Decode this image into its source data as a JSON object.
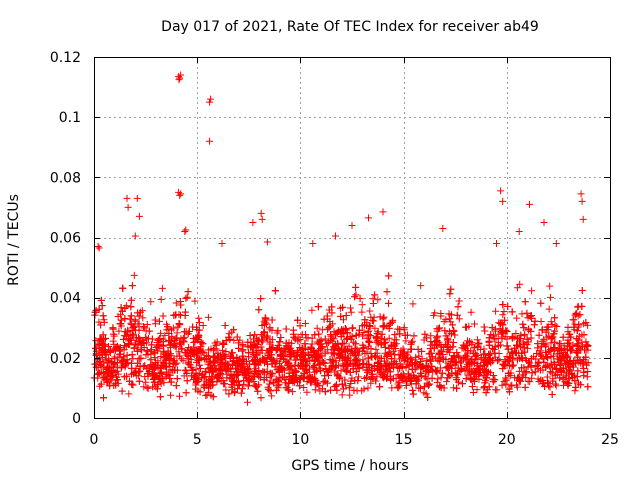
{
  "chart_data": {
    "type": "scatter",
    "title": "Day 017 of 2021, Rate Of TEC Index for receiver ab49",
    "xlabel": "GPS time / hours",
    "ylabel": "ROTI / TECUs",
    "xlim": [
      0,
      25
    ],
    "ylim": [
      0,
      0.12
    ],
    "xticks": [
      0,
      5,
      10,
      15,
      20,
      25
    ],
    "yticks": [
      0,
      0.02,
      0.04,
      0.06,
      0.08,
      0.1,
      0.12
    ],
    "xtick_labels": [
      "0",
      "5",
      "10",
      "15",
      "20",
      "25"
    ],
    "ytick_labels": [
      "0",
      "0.02",
      "0.04",
      "0.06",
      "0.08",
      "0.1",
      "0.12"
    ],
    "grid": true,
    "marker": "+",
    "color": "#ff0000",
    "outliers": [
      {
        "x": 4.1,
        "y": 0.1135
      },
      {
        "x": 4.15,
        "y": 0.113
      },
      {
        "x": 4.2,
        "y": 0.114
      },
      {
        "x": 4.12,
        "y": 0.1125
      },
      {
        "x": 5.6,
        "y": 0.105
      },
      {
        "x": 5.65,
        "y": 0.106
      },
      {
        "x": 5.6,
        "y": 0.092
      },
      {
        "x": 4.1,
        "y": 0.075
      },
      {
        "x": 4.2,
        "y": 0.0745
      },
      {
        "x": 4.15,
        "y": 0.074
      },
      {
        "x": 1.6,
        "y": 0.073
      },
      {
        "x": 2.1,
        "y": 0.073
      },
      {
        "x": 1.65,
        "y": 0.07
      },
      {
        "x": 19.7,
        "y": 0.0755
      },
      {
        "x": 19.8,
        "y": 0.072
      },
      {
        "x": 21.1,
        "y": 0.071
      },
      {
        "x": 23.6,
        "y": 0.0745
      },
      {
        "x": 23.65,
        "y": 0.072
      },
      {
        "x": 23.7,
        "y": 0.066
      },
      {
        "x": 8.1,
        "y": 0.068
      },
      {
        "x": 8.15,
        "y": 0.066
      },
      {
        "x": 7.7,
        "y": 0.065
      },
      {
        "x": 14.0,
        "y": 0.0685
      },
      {
        "x": 13.3,
        "y": 0.0665
      },
      {
        "x": 12.5,
        "y": 0.064
      },
      {
        "x": 2.2,
        "y": 0.067
      },
      {
        "x": 4.4,
        "y": 0.062
      },
      {
        "x": 4.45,
        "y": 0.0625
      },
      {
        "x": 16.9,
        "y": 0.063
      },
      {
        "x": 21.8,
        "y": 0.065
      },
      {
        "x": 20.6,
        "y": 0.062
      },
      {
        "x": 0.2,
        "y": 0.057
      },
      {
        "x": 0.25,
        "y": 0.0565
      },
      {
        "x": 2.0,
        "y": 0.0605
      },
      {
        "x": 11.7,
        "y": 0.0605
      },
      {
        "x": 10.6,
        "y": 0.058
      },
      {
        "x": 8.4,
        "y": 0.0585
      },
      {
        "x": 6.2,
        "y": 0.058
      },
      {
        "x": 19.5,
        "y": 0.058
      },
      {
        "x": 22.4,
        "y": 0.058
      }
    ]
  }
}
